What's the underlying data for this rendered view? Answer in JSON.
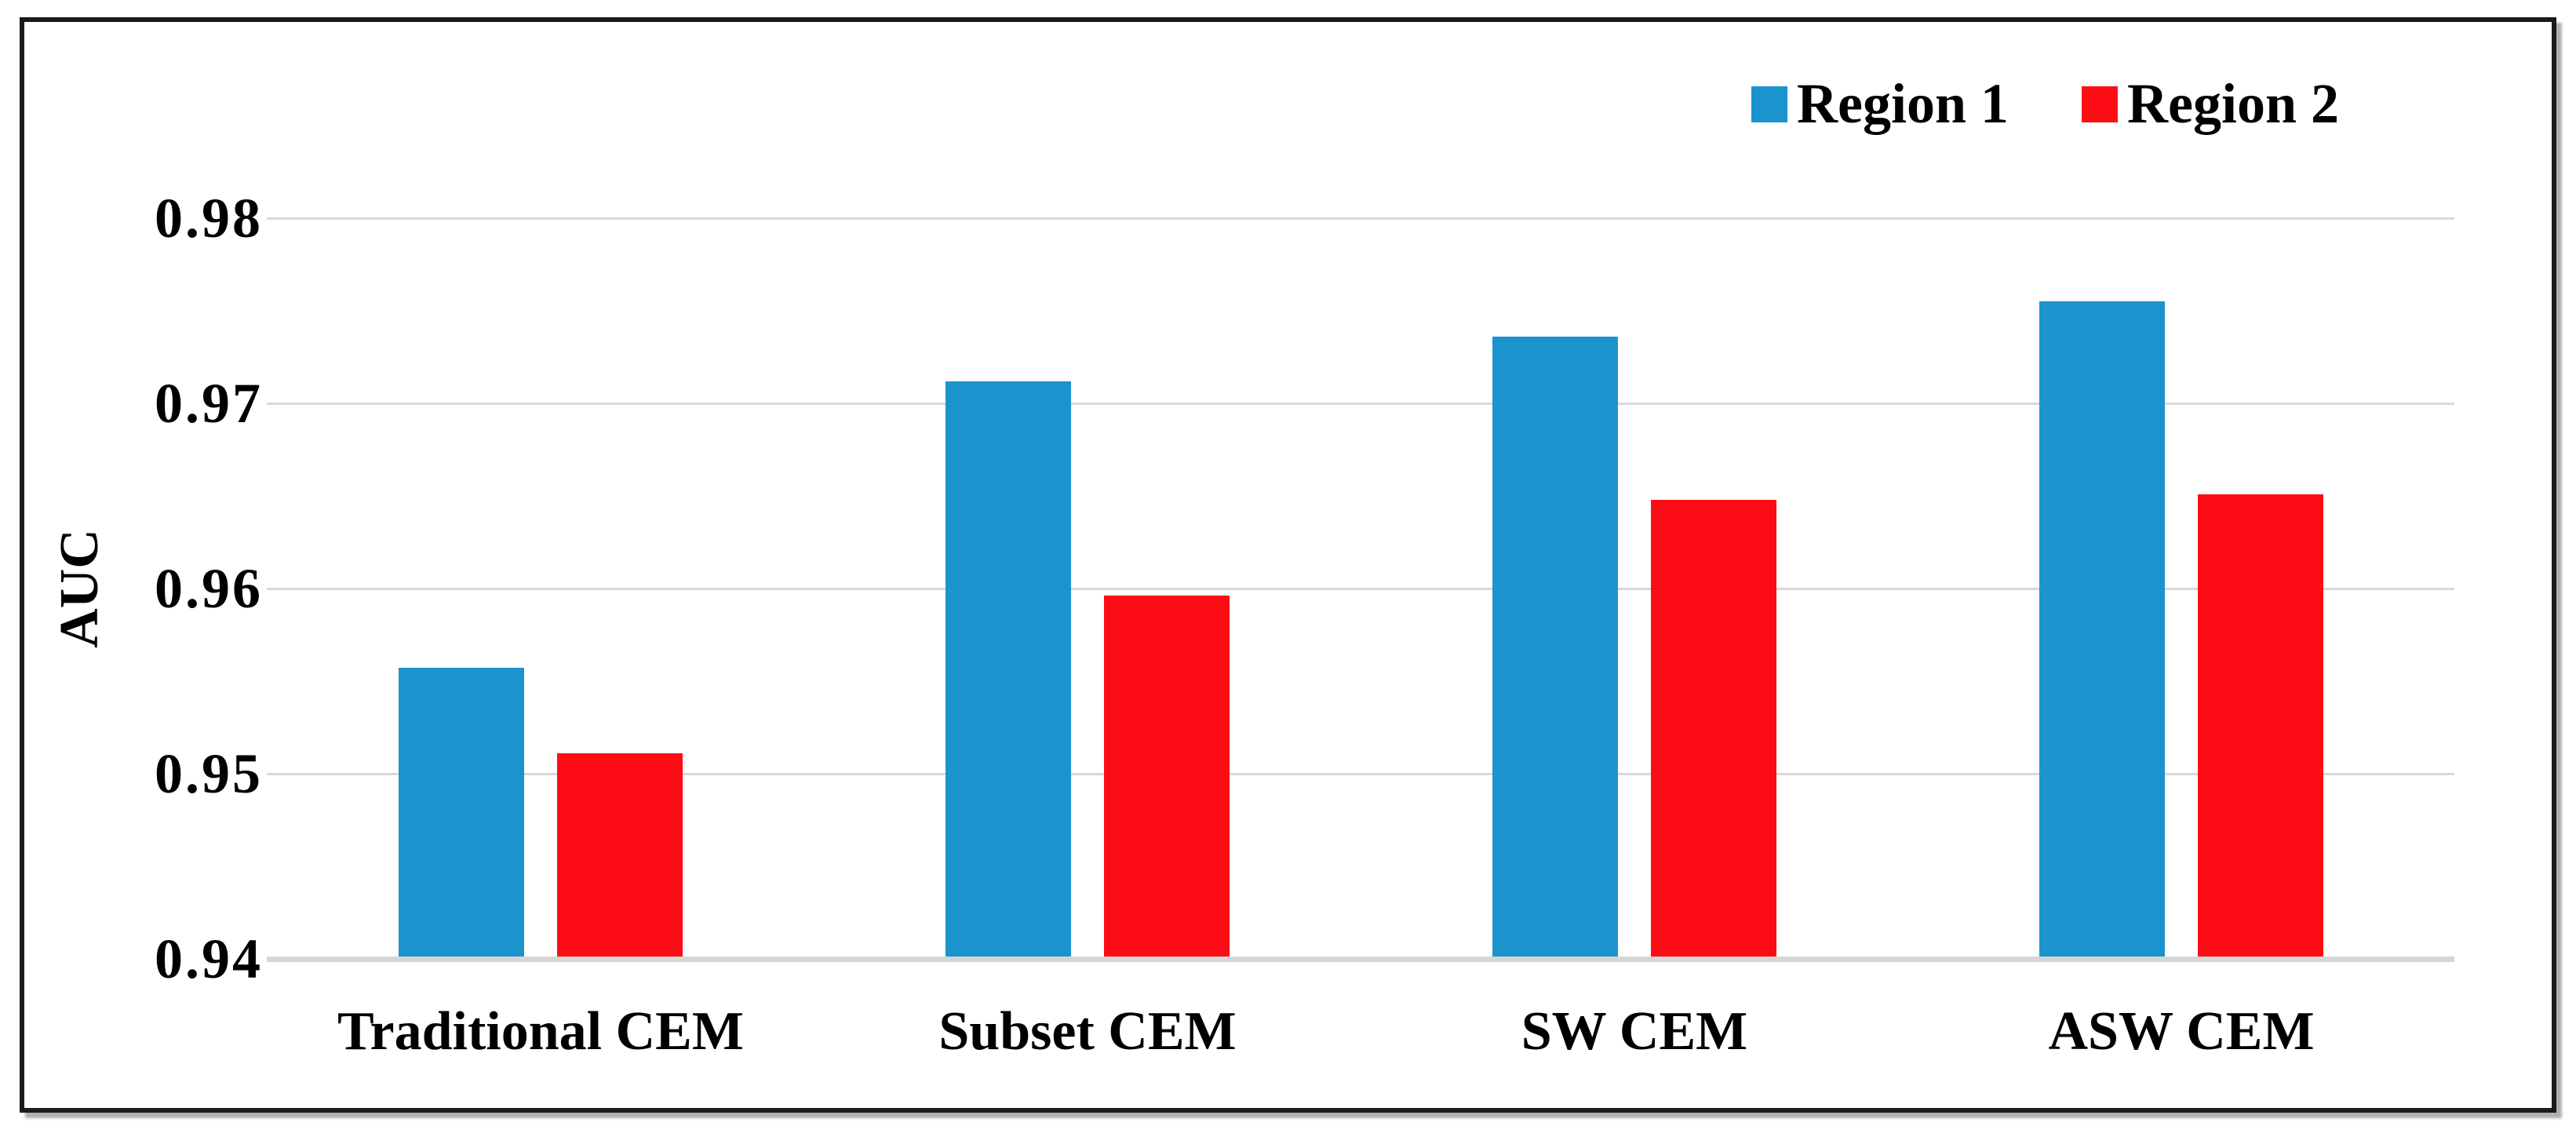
{
  "figure": {
    "background": "#ffffff",
    "frame_color": "#1b1b1b",
    "gridline_color": "#d8d8d8"
  },
  "chart_data": {
    "type": "bar",
    "title": "",
    "xlabel": "",
    "ylabel": "AUC",
    "ylim": [
      0.94,
      0.98
    ],
    "ytick_step": 0.01,
    "yticks": [
      "0.98",
      "0.97",
      "0.96",
      "0.95",
      "0.94"
    ],
    "grid": true,
    "legend_position": "top-right",
    "categories": [
      "Traditional CEM",
      "Subset CEM",
      "SW CEM",
      "ASW CEM"
    ],
    "series": [
      {
        "name": "Region 1",
        "color": "#1b94ce",
        "values": [
          0.9557,
          0.9712,
          0.9736,
          0.9755
        ]
      },
      {
        "name": "Region 2",
        "color": "#fc0d15",
        "values": [
          0.9511,
          0.9596,
          0.9648,
          0.9651
        ]
      }
    ]
  }
}
